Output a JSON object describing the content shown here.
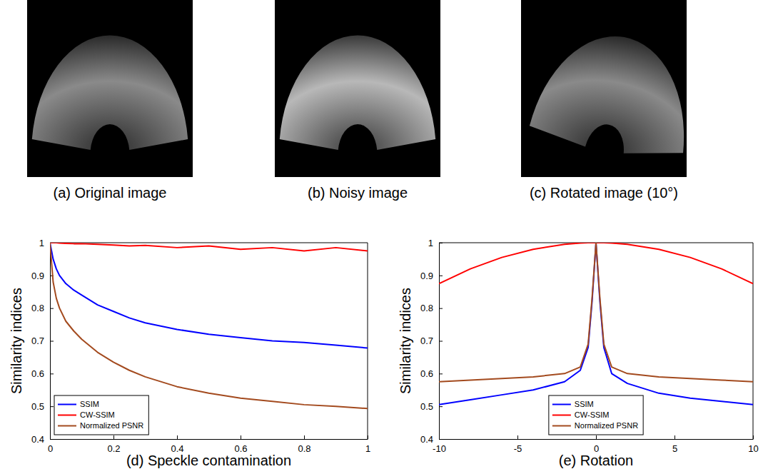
{
  "images": [
    {
      "caption": "(a) Original image"
    },
    {
      "caption": "(b) Noisy image"
    },
    {
      "caption": "(c) Rotated image (10°)"
    }
  ],
  "chart_data": [
    {
      "type": "line",
      "x_label": "(d) Speckle contamination",
      "y_label": "Similarity indices",
      "x": [
        0,
        0.01,
        0.02,
        0.03,
        0.05,
        0.075,
        0.1,
        0.15,
        0.2,
        0.25,
        0.3,
        0.4,
        0.5,
        0.6,
        0.7,
        0.8,
        0.9,
        1
      ],
      "series": [
        {
          "name": "SSIM",
          "color": "#0000ff",
          "values": [
            1,
            0.95,
            0.92,
            0.9,
            0.875,
            0.855,
            0.84,
            0.81,
            0.79,
            0.77,
            0.755,
            0.735,
            0.72,
            0.71,
            0.7,
            0.695,
            0.687,
            0.678
          ]
        },
        {
          "name": "CW-SSIM",
          "color": "#ff0000",
          "values": [
            1,
            1,
            1,
            0.999,
            0.998,
            0.997,
            0.997,
            0.995,
            0.993,
            0.99,
            0.992,
            0.985,
            0.99,
            0.98,
            0.985,
            0.975,
            0.985,
            0.975
          ]
        },
        {
          "name": "Normalized PSNR",
          "color": "#a34a1e",
          "values": [
            1,
            0.88,
            0.83,
            0.8,
            0.76,
            0.73,
            0.705,
            0.665,
            0.635,
            0.61,
            0.59,
            0.56,
            0.54,
            0.525,
            0.515,
            0.505,
            0.5,
            0.493
          ]
        }
      ],
      "xlim": [
        0,
        1
      ],
      "xticks": [
        0,
        0.2,
        0.4,
        0.6,
        0.8,
        1
      ],
      "ylim": [
        0.4,
        1
      ],
      "yticks": [
        0.4,
        0.5,
        0.6,
        0.7,
        0.8,
        0.9,
        1
      ],
      "grid": false,
      "legend": "lower left"
    },
    {
      "type": "line",
      "x_label": "(e) Rotation",
      "y_label": "Similarity indices",
      "x": [
        -10,
        -8,
        -6,
        -4,
        -2,
        -1,
        -0.5,
        -0.25,
        0,
        0.25,
        0.5,
        1,
        2,
        4,
        6,
        8,
        10
      ],
      "series": [
        {
          "name": "SSIM",
          "color": "#0000ff",
          "values": [
            0.505,
            0.52,
            0.535,
            0.55,
            0.575,
            0.61,
            0.68,
            0.82,
            1,
            0.82,
            0.68,
            0.6,
            0.57,
            0.54,
            0.525,
            0.515,
            0.505
          ]
        },
        {
          "name": "CW-SSIM",
          "color": "#ff0000",
          "values": [
            0.875,
            0.92,
            0.955,
            0.98,
            0.995,
            0.999,
            1,
            1,
            1,
            1,
            1,
            0.999,
            0.995,
            0.98,
            0.955,
            0.92,
            0.875
          ]
        },
        {
          "name": "Normalized PSNR",
          "color": "#a34a1e",
          "values": [
            0.575,
            0.58,
            0.585,
            0.59,
            0.6,
            0.62,
            0.69,
            0.83,
            1,
            0.83,
            0.69,
            0.62,
            0.6,
            0.59,
            0.585,
            0.58,
            0.575
          ]
        }
      ],
      "xlim": [
        -10,
        10
      ],
      "xticks": [
        -10,
        -5,
        0,
        5,
        10
      ],
      "ylim": [
        0.4,
        1
      ],
      "yticks": [
        0.4,
        0.5,
        0.6,
        0.7,
        0.8,
        0.9,
        1
      ],
      "grid": false,
      "legend": "lower center"
    }
  ]
}
